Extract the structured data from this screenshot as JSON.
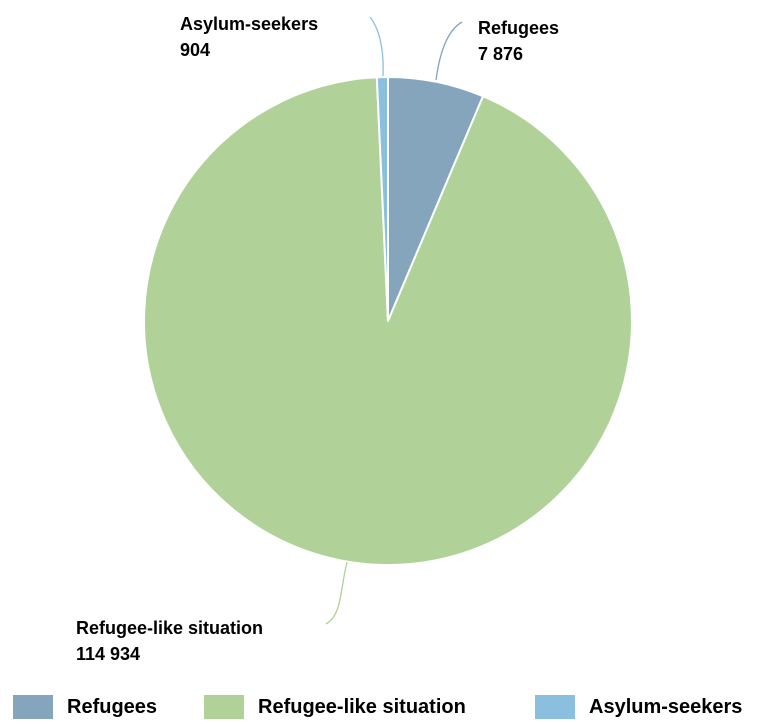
{
  "chart_data": {
    "type": "pie",
    "title": "",
    "slices": [
      {
        "name": "Refugees",
        "value": 7876,
        "label_value": "7 876",
        "color": "#84a5bb"
      },
      {
        "name": "Refugee-like situation",
        "value": 114934,
        "label_value": "114 934",
        "color": "#b0d198"
      },
      {
        "name": "Asylum-seekers",
        "value": 904,
        "label_value": "904",
        "color": "#8bbfe0"
      }
    ],
    "legend": {
      "placement": "bottom",
      "entries": [
        "Refugees",
        "Refugee-like situation",
        "Asylum-seekers"
      ]
    },
    "data_labels": "outside, with leader lines"
  }
}
